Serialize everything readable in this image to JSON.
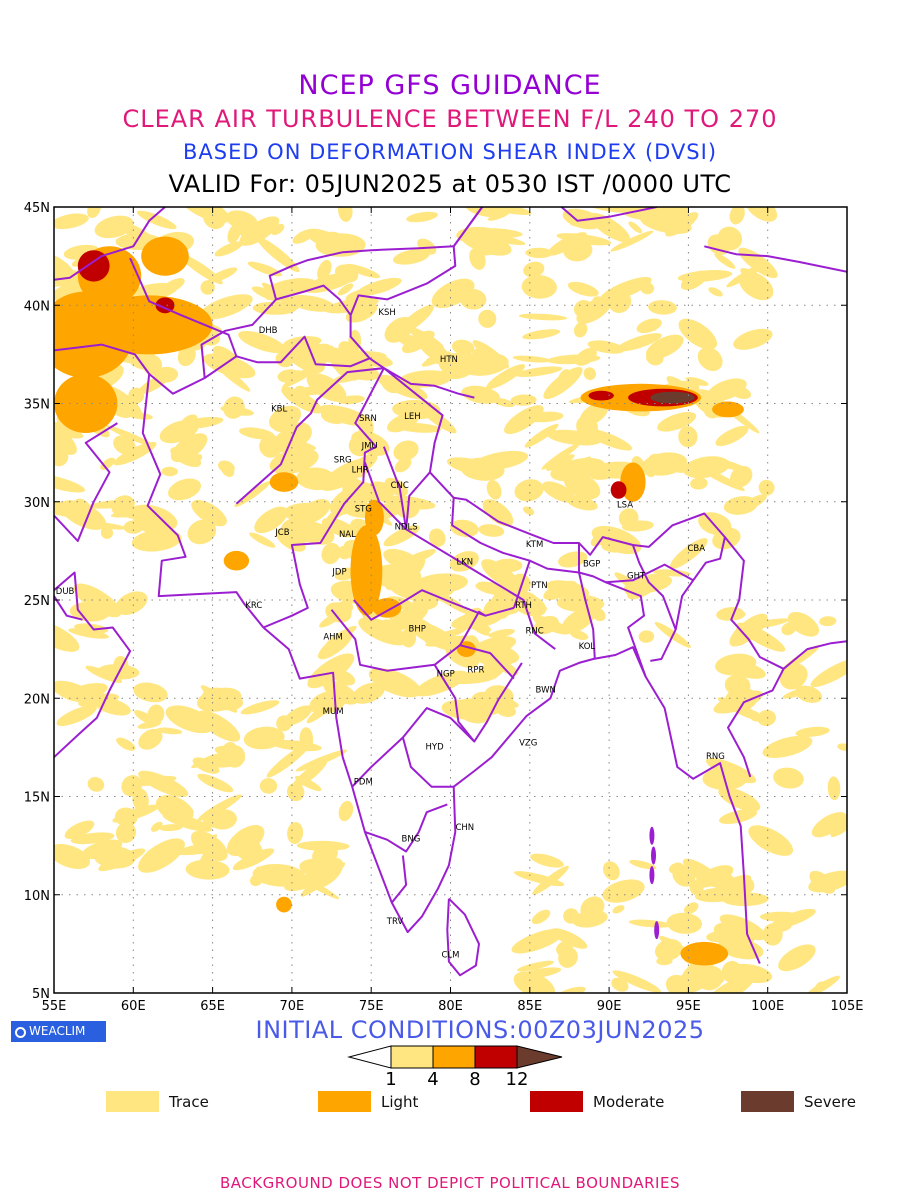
{
  "titles": {
    "line1": "NCEP GFS GUIDANCE",
    "line2": "CLEAR AIR TURBULENCE BETWEEN F/L 240 TO 270",
    "line3": "BASED ON DEFORMATION SHEAR INDEX (DVSI)",
    "line4": "VALID For: 05JUN2025 at 0530 IST /0000 UTC"
  },
  "map": {
    "lon_range": [
      55,
      105
    ],
    "lat_range": [
      5,
      45
    ],
    "lon_ticks": [
      "55E",
      "60E",
      "65E",
      "70E",
      "75E",
      "80E",
      "85E",
      "90E",
      "95E",
      "100E",
      "105E"
    ],
    "lat_ticks": [
      "5N",
      "10N",
      "15N",
      "20N",
      "25N",
      "30N",
      "35N",
      "40N",
      "45N"
    ],
    "gridlines": true,
    "boundary_color": "#9b1fd0",
    "stations": [
      {
        "code": "KSH",
        "lon": 76.0,
        "lat": 39.5
      },
      {
        "code": "HTN",
        "lon": 79.9,
        "lat": 37.1
      },
      {
        "code": "DHB",
        "lon": 68.5,
        "lat": 38.6
      },
      {
        "code": "KBL",
        "lon": 69.2,
        "lat": 34.6
      },
      {
        "code": "SRN",
        "lon": 74.8,
        "lat": 34.1
      },
      {
        "code": "LEH",
        "lon": 77.6,
        "lat": 34.2
      },
      {
        "code": "JMU",
        "lon": 74.9,
        "lat": 32.7
      },
      {
        "code": "SRG",
        "lon": 73.2,
        "lat": 32.0
      },
      {
        "code": "LHR",
        "lon": 74.3,
        "lat": 31.5
      },
      {
        "code": "CNC",
        "lon": 76.8,
        "lat": 30.7
      },
      {
        "code": "STG",
        "lon": 74.5,
        "lat": 29.5
      },
      {
        "code": "NAL",
        "lon": 73.5,
        "lat": 28.2
      },
      {
        "code": "NDLS",
        "lon": 77.2,
        "lat": 28.6
      },
      {
        "code": "JCB",
        "lon": 69.4,
        "lat": 28.3
      },
      {
        "code": "JDP",
        "lon": 73.0,
        "lat": 26.3
      },
      {
        "code": "LKN",
        "lon": 80.9,
        "lat": 26.8
      },
      {
        "code": "KTM",
        "lon": 85.3,
        "lat": 27.7
      },
      {
        "code": "BGP",
        "lon": 88.9,
        "lat": 26.7
      },
      {
        "code": "GHT",
        "lon": 91.7,
        "lat": 26.1
      },
      {
        "code": "CBA",
        "lon": 95.5,
        "lat": 27.5
      },
      {
        "code": "LSA",
        "lon": 91.0,
        "lat": 29.7
      },
      {
        "code": "PTN",
        "lon": 85.6,
        "lat": 25.6
      },
      {
        "code": "RTH",
        "lon": 84.6,
        "lat": 24.6
      },
      {
        "code": "RNC",
        "lon": 85.3,
        "lat": 23.3
      },
      {
        "code": "KOL",
        "lon": 88.6,
        "lat": 22.5
      },
      {
        "code": "KRC",
        "lon": 67.6,
        "lat": 24.6
      },
      {
        "code": "AHM",
        "lon": 72.6,
        "lat": 23.0
      },
      {
        "code": "BHP",
        "lon": 77.9,
        "lat": 23.4
      },
      {
        "code": "NGP",
        "lon": 79.7,
        "lat": 21.1
      },
      {
        "code": "RPR",
        "lon": 81.6,
        "lat": 21.3
      },
      {
        "code": "BWN",
        "lon": 86.0,
        "lat": 20.3
      },
      {
        "code": "MUM",
        "lon": 72.6,
        "lat": 19.2
      },
      {
        "code": "HYD",
        "lon": 79.0,
        "lat": 17.4
      },
      {
        "code": "VZG",
        "lon": 84.9,
        "lat": 17.6
      },
      {
        "code": "RNG",
        "lon": 96.7,
        "lat": 16.9
      },
      {
        "code": "PDM",
        "lon": 74.5,
        "lat": 15.6
      },
      {
        "code": "CHN",
        "lon": 80.9,
        "lat": 13.3
      },
      {
        "code": "BNG",
        "lon": 77.5,
        "lat": 12.7
      },
      {
        "code": "TRV",
        "lon": 76.5,
        "lat": 8.5
      },
      {
        "code": "CLM",
        "lon": 80.0,
        "lat": 6.8
      },
      {
        "code": "DUB",
        "lon": 55.7,
        "lat": 25.3
      }
    ],
    "turbulence_cells": [
      {
        "lon": 57.0,
        "lat": 38.5,
        "rx": 3.0,
        "ry": 2.2,
        "level": 2
      },
      {
        "lon": 61.0,
        "lat": 39.0,
        "rx": 4.0,
        "ry": 1.5,
        "level": 2
      },
      {
        "lon": 58.5,
        "lat": 41.5,
        "rx": 2.0,
        "ry": 1.5,
        "level": 2
      },
      {
        "lon": 57.0,
        "lat": 35.0,
        "rx": 2.0,
        "ry": 1.5,
        "level": 2
      },
      {
        "lon": 57.5,
        "lat": 42.0,
        "rx": 1.0,
        "ry": 0.8,
        "level": 3
      },
      {
        "lon": 62.0,
        "lat": 40.0,
        "rx": 0.6,
        "ry": 0.4,
        "level": 3
      },
      {
        "lon": 74.7,
        "lat": 26.5,
        "rx": 1.0,
        "ry": 2.3,
        "level": 2
      },
      {
        "lon": 75.2,
        "lat": 29.2,
        "rx": 0.6,
        "ry": 0.9,
        "level": 2
      },
      {
        "lon": 76.0,
        "lat": 24.6,
        "rx": 0.9,
        "ry": 0.5,
        "level": 2
      },
      {
        "lon": 81.0,
        "lat": 22.5,
        "rx": 0.6,
        "ry": 0.4,
        "level": 2
      },
      {
        "lon": 92.0,
        "lat": 35.3,
        "rx": 3.8,
        "ry": 0.7,
        "level": 2
      },
      {
        "lon": 93.4,
        "lat": 35.3,
        "rx": 2.2,
        "ry": 0.45,
        "level": 3
      },
      {
        "lon": 94.0,
        "lat": 35.3,
        "rx": 1.4,
        "ry": 0.3,
        "level": 4
      },
      {
        "lon": 91.5,
        "lat": 31.0,
        "rx": 0.8,
        "ry": 1.0,
        "level": 2
      },
      {
        "lon": 90.6,
        "lat": 30.6,
        "rx": 0.5,
        "ry": 0.45,
        "level": 3
      },
      {
        "lon": 89.5,
        "lat": 35.4,
        "rx": 0.8,
        "ry": 0.25,
        "level": 3
      },
      {
        "lon": 69.5,
        "lat": 31.0,
        "rx": 0.9,
        "ry": 0.5,
        "level": 2
      },
      {
        "lon": 66.5,
        "lat": 27.0,
        "rx": 0.8,
        "ry": 0.5,
        "level": 2
      },
      {
        "lon": 62.0,
        "lat": 42.5,
        "rx": 1.5,
        "ry": 1.0,
        "level": 2
      },
      {
        "lon": 97.5,
        "lat": 34.7,
        "rx": 1.0,
        "ry": 0.4,
        "level": 2
      },
      {
        "lon": 96.0,
        "lat": 7.0,
        "rx": 1.5,
        "ry": 0.6,
        "level": 2
      },
      {
        "lon": 69.5,
        "lat": 9.5,
        "rx": 0.5,
        "ry": 0.4,
        "level": 2
      }
    ]
  },
  "watermark": "WEACLIM",
  "initial_conditions": "INITIAL CONDITIONS:00Z03JUN2025",
  "colorbar": {
    "ticks": [
      "1",
      "4",
      "8",
      "12"
    ],
    "colors": [
      "#ffffff",
      "#ffe680",
      "#ffa500",
      "#c00000",
      "#6b3b2e"
    ]
  },
  "legend": [
    {
      "label": "Trace",
      "color": "#ffe680"
    },
    {
      "label": "Light",
      "color": "#ffa500"
    },
    {
      "label": "Moderate",
      "color": "#c00000"
    },
    {
      "label": "Severe",
      "color": "#6b3b2e"
    }
  ],
  "footer": "BACKGROUND DOES NOT DEPICT POLITICAL BOUNDARIES"
}
